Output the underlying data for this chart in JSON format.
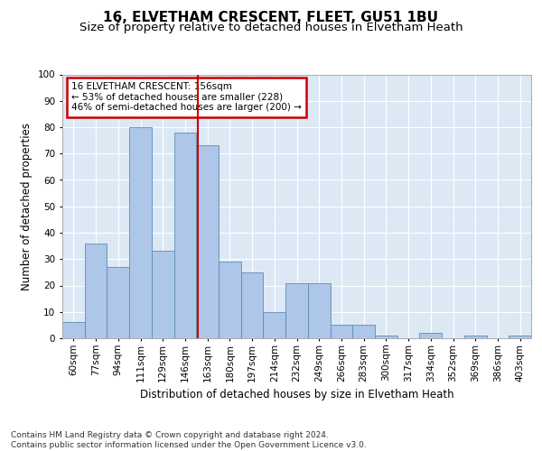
{
  "title1": "16, ELVETHAM CRESCENT, FLEET, GU51 1BU",
  "title2": "Size of property relative to detached houses in Elvetham Heath",
  "xlabel": "Distribution of detached houses by size in Elvetham Heath",
  "ylabel": "Number of detached properties",
  "footnote": "Contains HM Land Registry data © Crown copyright and database right 2024.\nContains public sector information licensed under the Open Government Licence v3.0.",
  "bin_labels": [
    "60sqm",
    "77sqm",
    "94sqm",
    "111sqm",
    "129sqm",
    "146sqm",
    "163sqm",
    "180sqm",
    "197sqm",
    "214sqm",
    "232sqm",
    "249sqm",
    "266sqm",
    "283sqm",
    "300sqm",
    "317sqm",
    "334sqm",
    "352sqm",
    "369sqm",
    "386sqm",
    "403sqm"
  ],
  "bar_heights": [
    6,
    36,
    27,
    80,
    33,
    78,
    73,
    29,
    25,
    10,
    21,
    21,
    5,
    5,
    1,
    0,
    2,
    0,
    1,
    0,
    1
  ],
  "bar_color": "#aec6e8",
  "bar_edge_color": "#5b8db8",
  "property_line_color": "#cc0000",
  "annotation_text": "16 ELVETHAM CRESCENT: 156sqm\n← 53% of detached houses are smaller (228)\n46% of semi-detached houses are larger (200) →",
  "annotation_box_color": "#cc0000",
  "ylim": [
    0,
    100
  ],
  "background_color": "#dde8f5",
  "grid_color": "#ffffff",
  "fig_background": "#ffffff",
  "title_fontsize": 11,
  "subtitle_fontsize": 9.5,
  "axis_label_fontsize": 8.5,
  "tick_fontsize": 7.5,
  "footnote_fontsize": 6.5
}
